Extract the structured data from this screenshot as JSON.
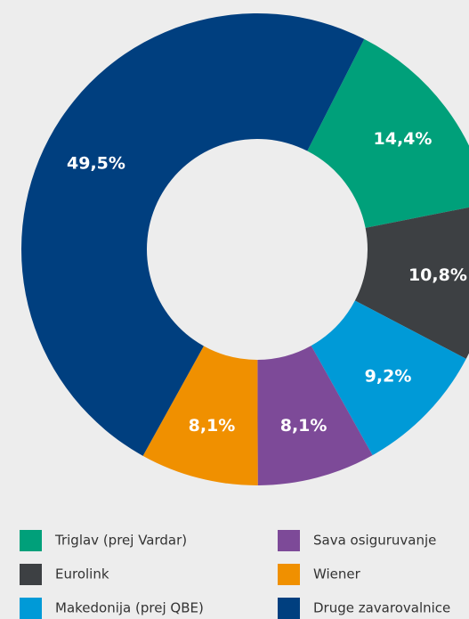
{
  "chart_data": {
    "type": "donut",
    "categories": [
      "Triglav (prej Vardar)",
      "Eurolink",
      "Makedonija (prej QBE)",
      "Sava osiguruvanje",
      "Wiener",
      "Druge zavarovalnice"
    ],
    "values": [
      14.4,
      10.8,
      9.2,
      8.1,
      8.1,
      49.5
    ],
    "value_labels": [
      "14,4%",
      "10,8%",
      "9,2%",
      "8,1%",
      "8,1%",
      "49,5%"
    ],
    "colors": [
      "#00a07a",
      "#3d4043",
      "#009ad7",
      "#7d4a98",
      "#f09000",
      "#003f7f"
    ]
  }
}
